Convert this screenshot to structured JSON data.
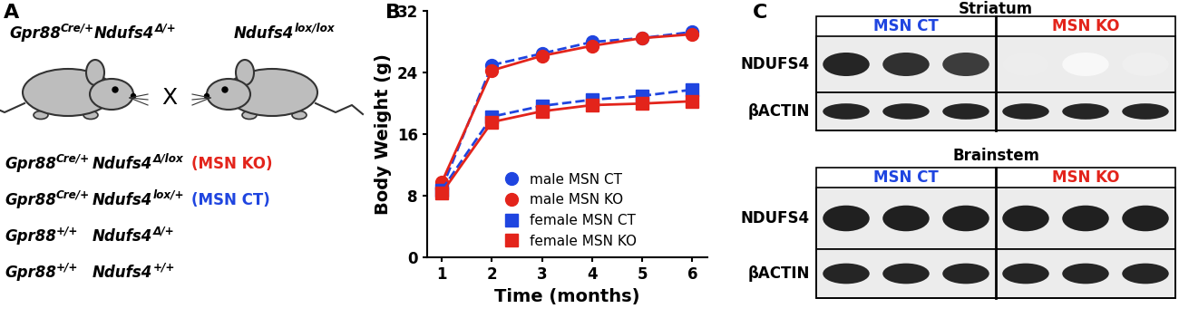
{
  "panel_labels": [
    "A",
    "B",
    "C"
  ],
  "panel_a": {
    "parents": [
      [
        [
          {
            "text": "Gpr88"
          },
          {
            "text": "Cre/+",
            "sup": true
          }
        ],
        [
          {
            "text": "Ndufs4"
          },
          {
            "text": "Δ/+",
            "sup": true
          }
        ]
      ],
      [
        [
          {
            "text": "Ndufs4"
          },
          {
            "text": "lox/lox",
            "sup": true
          }
        ]
      ]
    ],
    "cross": "X",
    "offspring": [
      {
        "genotype": [
          [
            {
              "text": "Gpr88"
            },
            {
              "text": "Cre/+",
              "sup": true
            }
          ],
          [
            {
              "text": "Ndufs4"
            },
            {
              "text": "Δ/lox",
              "sup": true
            }
          ]
        ],
        "name": "(MSN KO)",
        "color": "#e3241b"
      },
      {
        "genotype": [
          [
            {
              "text": "Gpr88"
            },
            {
              "text": "Cre/+",
              "sup": true
            }
          ],
          [
            {
              "text": "Ndufs4"
            },
            {
              "text": "lox/+",
              "sup": true
            }
          ]
        ],
        "name": "(MSN CT)",
        "color": "#1f45e0"
      },
      {
        "genotype": [
          [
            {
              "text": "Gpr88"
            },
            {
              "text": "+/+",
              "sup": true
            }
          ],
          [
            {
              "text": "Ndufs4"
            },
            {
              "text": "Δ/+",
              "sup": true
            }
          ]
        ]
      },
      {
        "genotype": [
          [
            {
              "text": "Gpr88"
            },
            {
              "text": "+/+",
              "sup": true
            }
          ],
          [
            {
              "text": "Ndufs4"
            },
            {
              "text": "+/+",
              "sup": true
            }
          ]
        ]
      }
    ]
  },
  "chart_data": {
    "type": "line",
    "x_label": "Time (months)",
    "y_label": "Body Weight (g)",
    "x": [
      1,
      2,
      3,
      4,
      5,
      6
    ],
    "xlim": [
      0.7,
      6.3
    ],
    "xticks": [
      1,
      2,
      3,
      4,
      5,
      6
    ],
    "ylim": [
      0,
      32
    ],
    "yticks": [
      0,
      8,
      16,
      24,
      32
    ],
    "legend": "lower center",
    "series": [
      {
        "name": "male MSN CT",
        "color": "#1f45e0",
        "marker": "circle",
        "line_style": "dashed",
        "values": [
          9.0,
          25.0,
          26.5,
          28.0,
          28.5,
          29.3
        ]
      },
      {
        "name": "male MSN KO",
        "color": "#e3241b",
        "marker": "circle",
        "line_style": "solid",
        "values": [
          9.8,
          24.3,
          26.2,
          27.5,
          28.5,
          29.0
        ]
      },
      {
        "name": "female MSN CT",
        "color": "#1f45e0",
        "marker": "square",
        "line_style": "dashed",
        "values": [
          8.8,
          18.3,
          19.7,
          20.5,
          21.0,
          21.8
        ]
      },
      {
        "name": "female MSN KO",
        "color": "#e3241b",
        "marker": "square",
        "line_style": "solid",
        "values": [
          8.4,
          17.6,
          19.0,
          19.8,
          20.0,
          20.3
        ]
      }
    ]
  },
  "panel_c": {
    "blots": [
      {
        "title": "Striatum",
        "groups": [
          {
            "name": "MSN CT",
            "color": "#1f45e0",
            "lanes": 3
          },
          {
            "name": "MSN KO",
            "color": "#e3241b",
            "lanes": 3
          }
        ],
        "rows": [
          {
            "name": "NDUFS4",
            "intensity": [
              0.95,
              0.9,
              0.85,
              0.08,
              0.03,
              0.07
            ]
          },
          {
            "name": "βACTIN",
            "intensity": [
              0.95,
              0.95,
              0.95,
              0.95,
              0.95,
              0.95
            ]
          }
        ]
      },
      {
        "title": "Brainstem",
        "groups": [
          {
            "name": "MSN CT",
            "color": "#1f45e0",
            "lanes": 3
          },
          {
            "name": "MSN KO",
            "color": "#e3241b",
            "lanes": 3
          }
        ],
        "rows": [
          {
            "name": "NDUFS4",
            "intensity": [
              0.97,
              0.97,
              0.97,
              0.97,
              0.97,
              0.97
            ]
          },
          {
            "name": "βACTIN",
            "intensity": [
              0.95,
              0.95,
              0.95,
              0.95,
              0.95,
              0.95
            ]
          }
        ]
      }
    ]
  }
}
